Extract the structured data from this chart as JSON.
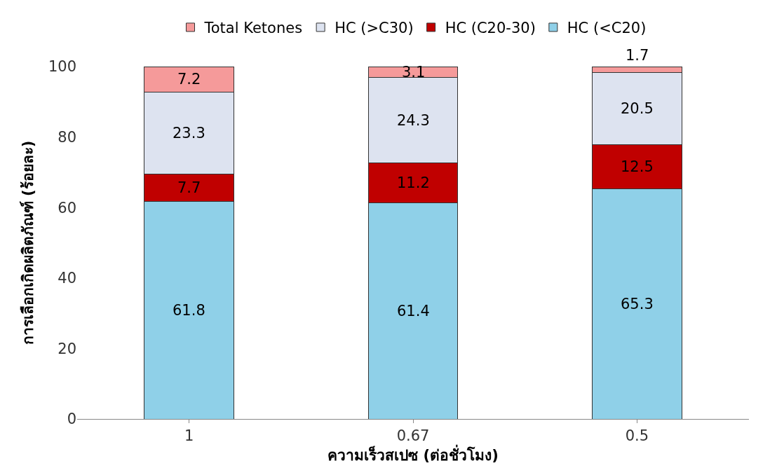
{
  "chart_data": {
    "type": "bar",
    "stacked": true,
    "xlabel": "ความเร็วสเปซ (ต่อชั่วโมง)",
    "ylabel": "การเลือกเกิดผลิตภัณฑ์ (ร้อยละ)",
    "categories": [
      "1",
      "0.67",
      "0.5"
    ],
    "series": [
      {
        "name": "HC (<C20)",
        "color": "#8fd0e8",
        "values": [
          61.8,
          61.4,
          65.3
        ]
      },
      {
        "name": "HC (C20-30)",
        "color": "#c00000",
        "values": [
          7.7,
          11.2,
          12.5
        ]
      },
      {
        "name": "HC (>C30)",
        "color": "#dde3f0",
        "values": [
          23.3,
          24.3,
          20.5
        ]
      },
      {
        "name": "Total Ketones",
        "color": "#f59a9a",
        "values": [
          7.2,
          3.1,
          1.7
        ]
      }
    ],
    "ylim": [
      0,
      100
    ],
    "yticks": [
      0,
      20,
      40,
      60,
      80,
      100
    ],
    "legend": "top",
    "data_labels": true
  }
}
